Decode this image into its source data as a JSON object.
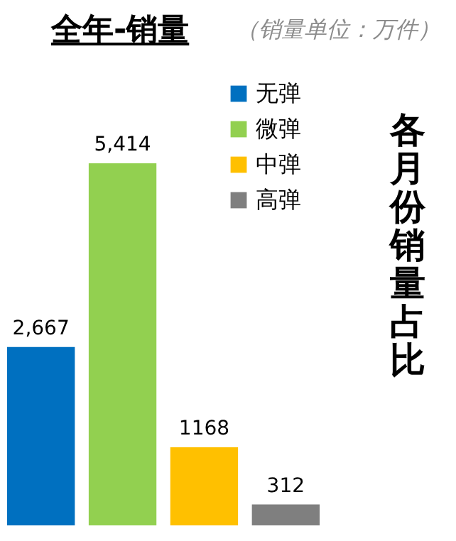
{
  "chart_data": {
    "type": "bar",
    "title": "全年-销量",
    "subtitle": "（销量单位：万件）",
    "annotations": [
      "各月份销量占比"
    ],
    "categories": [
      null,
      null,
      null,
      null
    ],
    "series": [
      {
        "name": "无弹",
        "color": "#0070c0",
        "values": [
          2667,
          null,
          null,
          null
        ],
        "value_labels": [
          "2,667",
          null,
          null,
          null
        ]
      },
      {
        "name": "微弹",
        "color": "#92d050",
        "values": [
          null,
          5414,
          null,
          null
        ],
        "value_labels": [
          null,
          "5,414",
          null,
          null
        ]
      },
      {
        "name": "中弹",
        "color": "#ffc000",
        "values": [
          null,
          null,
          1168,
          null
        ],
        "value_labels": [
          null,
          null,
          "1168",
          null
        ]
      },
      {
        "name": "高弹",
        "color": "#7f7f7f",
        "values": [
          null,
          null,
          null,
          312
        ],
        "value_labels": [
          null,
          null,
          null,
          "312"
        ]
      }
    ],
    "stacked": true,
    "legend": "top right"
  }
}
